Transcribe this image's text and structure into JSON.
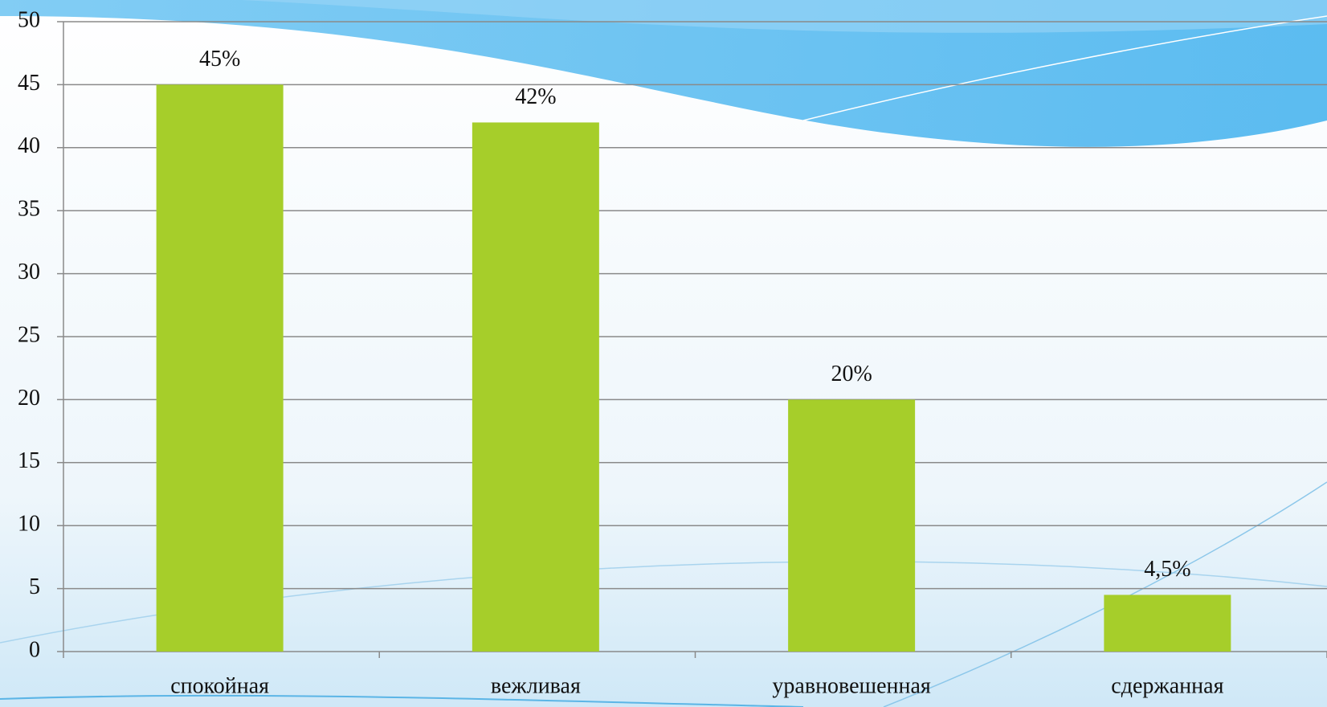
{
  "chart_data": {
    "type": "bar",
    "categories": [
      "спокойная",
      "вежливая",
      "уравновешенная",
      "сдержанная"
    ],
    "values": [
      45,
      42,
      20,
      4.5
    ],
    "value_labels": [
      "45%",
      "42%",
      "20%",
      "4,5%"
    ],
    "color": "#a6ce2a",
    "ylim": [
      0,
      50
    ],
    "yticks": [
      0,
      5,
      10,
      15,
      20,
      25,
      30,
      35,
      40,
      45,
      50
    ],
    "grid": true
  }
}
